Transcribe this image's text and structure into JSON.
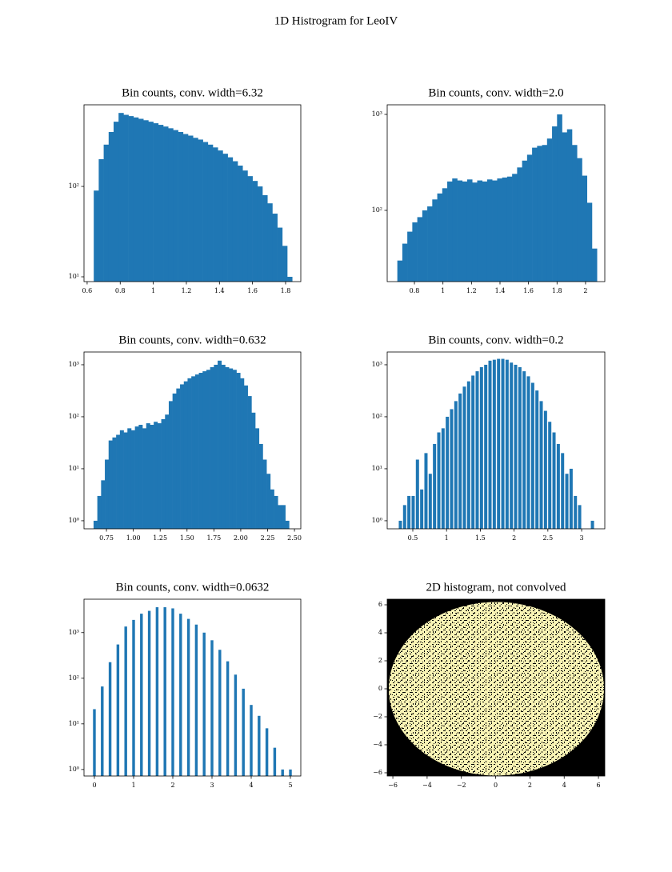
{
  "chart_data": [
    {
      "type": "histogram",
      "suptitle": "1D Histrogram for LeoIV",
      "title": "Bin counts, conv. width=6.32",
      "color": "#1f77b4",
      "log_y": true,
      "rwidth": 1,
      "bins": [
        0.64,
        0.67,
        0.7,
        0.73,
        0.76,
        0.79,
        0.82,
        0.85,
        0.88,
        0.91,
        0.94,
        0.97,
        1.0,
        1.03,
        1.06,
        1.09,
        1.12,
        1.15,
        1.18,
        1.21,
        1.24,
        1.27,
        1.3,
        1.33,
        1.36,
        1.39,
        1.42,
        1.45,
        1.48,
        1.51,
        1.54,
        1.57,
        1.6,
        1.63,
        1.66,
        1.69,
        1.72,
        1.75,
        1.78,
        1.81,
        1.84
      ],
      "values": [
        90,
        200,
        290,
        400,
        520,
        650,
        620,
        600,
        580,
        560,
        540,
        520,
        500,
        480,
        460,
        440,
        420,
        400,
        380,
        365,
        345,
        330,
        310,
        290,
        270,
        250,
        230,
        210,
        190,
        170,
        150,
        130,
        115,
        100,
        80,
        65,
        50,
        35,
        22,
        10
      ],
      "xlim": [
        0.581,
        1.892
      ],
      "ylim": [
        8.85,
        800
      ],
      "xticks": [
        0.6,
        0.8,
        1.0,
        1.2,
        1.4,
        1.6,
        1.8
      ],
      "yticks": [
        {
          "value": 10,
          "label": "10¹"
        },
        {
          "value": 100,
          "label": "10²"
        }
      ]
    },
    {
      "type": "histogram",
      "title": "Bin counts, conv. width=2.0",
      "color": "#1f77b4",
      "log_y": true,
      "rwidth": 1,
      "bins": [
        0.68,
        0.715,
        0.75,
        0.785,
        0.82,
        0.855,
        0.89,
        0.925,
        0.96,
        0.995,
        1.03,
        1.065,
        1.1,
        1.135,
        1.17,
        1.205,
        1.24,
        1.275,
        1.31,
        1.345,
        1.38,
        1.415,
        1.45,
        1.485,
        1.52,
        1.555,
        1.59,
        1.625,
        1.66,
        1.695,
        1.73,
        1.765,
        1.8,
        1.835,
        1.87,
        1.905,
        1.94,
        1.975,
        2.01,
        2.045,
        2.08
      ],
      "values": [
        30,
        45,
        60,
        75,
        85,
        100,
        110,
        130,
        150,
        170,
        200,
        215,
        205,
        200,
        210,
        195,
        205,
        200,
        210,
        205,
        215,
        220,
        225,
        240,
        280,
        330,
        380,
        450,
        470,
        480,
        560,
        750,
        1000,
        650,
        700,
        480,
        350,
        230,
        120,
        40
      ],
      "xlim": [
        0.609,
        2.135
      ],
      "ylim": [
        18.1,
        1259
      ],
      "xticks": [
        0.8,
        1.0,
        1.2,
        1.4,
        1.6,
        1.8,
        2.0
      ],
      "yticks": [
        {
          "value": 100,
          "label": "10²"
        },
        {
          "value": 1000,
          "label": "10³"
        }
      ]
    },
    {
      "type": "histogram",
      "title": "Bin counts, conv. width=0.632",
      "color": "#1f77b4",
      "log_y": true,
      "rwidth": 1,
      "bins": [
        0.63,
        0.665,
        0.7,
        0.735,
        0.77,
        0.805,
        0.84,
        0.875,
        0.91,
        0.945,
        0.98,
        1.015,
        1.05,
        1.085,
        1.12,
        1.155,
        1.19,
        1.225,
        1.26,
        1.295,
        1.33,
        1.365,
        1.4,
        1.435,
        1.47,
        1.505,
        1.54,
        1.575,
        1.61,
        1.645,
        1.68,
        1.715,
        1.75,
        1.785,
        1.82,
        1.855,
        1.89,
        1.925,
        1.96,
        1.995,
        2.03,
        2.065,
        2.1,
        2.135,
        2.17,
        2.205,
        2.24,
        2.275,
        2.31,
        2.345,
        2.38,
        2.415,
        2.45
      ],
      "values": [
        1,
        3,
        6,
        15,
        35,
        40,
        45,
        55,
        50,
        60,
        55,
        65,
        70,
        60,
        75,
        70,
        80,
        75,
        90,
        110,
        200,
        280,
        350,
        420,
        480,
        550,
        600,
        650,
        700,
        750,
        800,
        900,
        1000,
        1200,
        1000,
        900,
        850,
        800,
        700,
        550,
        400,
        250,
        120,
        60,
        30,
        15,
        8,
        4,
        3,
        2,
        2,
        1
      ],
      "xlim": [
        0.541,
        2.559
      ],
      "ylim": [
        0.7,
        1760
      ],
      "xticks": [
        0.75,
        {
          "value": 1,
          "label": "1.00"
        },
        1.25,
        {
          "value": 1.5,
          "label": "1.50"
        },
        1.75,
        {
          "value": 2,
          "label": "2.00"
        },
        2.25,
        {
          "value": 2.5,
          "label": "2.50"
        }
      ],
      "yticks": [
        {
          "value": 1,
          "label": "10⁰"
        },
        {
          "value": 10,
          "label": "10¹"
        },
        {
          "value": 100,
          "label": "10²"
        },
        {
          "value": 1000,
          "label": "10³"
        }
      ]
    },
    {
      "type": "histogram",
      "title": "Bin counts, conv. width=0.2",
      "color": "#1f77b4",
      "log_y": true,
      "rwidth": 0.75,
      "bins": [
        0.2844,
        0.3476,
        0.4108,
        0.474,
        0.5372,
        0.6004,
        0.6636,
        0.7268,
        0.79,
        0.8532,
        0.9164,
        0.9796,
        1.0428,
        1.106,
        1.1692,
        1.2324,
        1.2956,
        1.3588,
        1.422,
        1.4852,
        1.5484,
        1.6116,
        1.6748,
        1.738,
        1.8012,
        1.8644,
        1.9276,
        1.9908,
        2.054,
        2.1172,
        2.1804,
        2.2436,
        2.3068,
        2.37,
        2.4332,
        2.4964,
        2.5596,
        2.6228,
        2.686,
        2.7492,
        2.8124,
        2.8756,
        2.9388,
        3.002,
        3.0652,
        3.1284,
        3.1916
      ],
      "values": [
        1,
        2,
        3,
        3,
        15,
        4,
        20,
        8,
        30,
        50,
        60,
        100,
        140,
        200,
        280,
        380,
        480,
        620,
        750,
        900,
        1000,
        1200,
        1250,
        1300,
        1300,
        1250,
        1100,
        1000,
        900,
        750,
        600,
        450,
        320,
        200,
        130,
        80,
        50,
        30,
        20,
        8,
        10,
        3,
        2,
        0,
        0,
        1
      ],
      "xlim": [
        0.121,
        3.343
      ],
      "ylim": [
        0.7,
        1760
      ],
      "xticks": [
        0.5,
        1.0,
        1.5,
        2.0,
        2.5,
        3.0
      ],
      "yticks": [
        {
          "value": 1,
          "label": "10⁰"
        },
        {
          "value": 10,
          "label": "10¹"
        },
        {
          "value": 100,
          "label": "10²"
        },
        {
          "value": 1000,
          "label": "10³"
        }
      ]
    },
    {
      "type": "histogram",
      "title": "Bin counts, conv. width=0.0632",
      "color": "#1f77b4",
      "log_y": true,
      "rwidth": 0.35,
      "bins": [
        -0.1,
        0.1,
        0.3,
        0.5,
        0.7,
        0.9,
        1.1,
        1.3,
        1.5,
        1.7,
        1.9,
        2.1,
        2.3,
        2.5,
        2.7,
        2.9,
        3.1,
        3.3,
        3.5,
        3.7,
        3.9,
        4.1,
        4.3,
        4.5,
        4.7,
        4.9,
        5.1
      ],
      "values": [
        21,
        66,
        225,
        550,
        1360,
        1900,
        2600,
        3000,
        3600,
        3600,
        3400,
        2600,
        2000,
        1500,
        1000,
        680,
        420,
        235,
        120,
        59,
        26,
        15,
        8,
        3,
        1,
        1
      ],
      "xlim": [
        -0.265,
        5.265
      ],
      "ylim": [
        0.72,
        5400
      ],
      "xticks": [
        0,
        1,
        2,
        3,
        4,
        5
      ],
      "yticks": [
        {
          "value": 1,
          "label": "10⁰"
        },
        {
          "value": 10,
          "label": "10¹"
        },
        {
          "value": 100,
          "label": "10²"
        },
        {
          "value": 1000,
          "label": "10³"
        }
      ]
    },
    {
      "type": "hist2d",
      "title": "2D histogram, not convolved",
      "colors": [
        "#000000",
        "#f9f3b4"
      ],
      "xlim": [
        -6.33,
        6.37
      ],
      "ylim": [
        -6.23,
        6.4
      ],
      "xticks": [
        {
          "value": -6,
          "label": "−6"
        },
        {
          "value": -4,
          "label": "−4"
        },
        {
          "value": -2,
          "label": "−2"
        },
        0,
        2,
        4,
        6
      ],
      "yticks": [
        {
          "value": -6,
          "label": "−6"
        },
        {
          "value": -4,
          "label": "−4"
        },
        {
          "value": -2,
          "label": "−2"
        },
        0,
        2,
        4,
        6
      ]
    }
  ]
}
